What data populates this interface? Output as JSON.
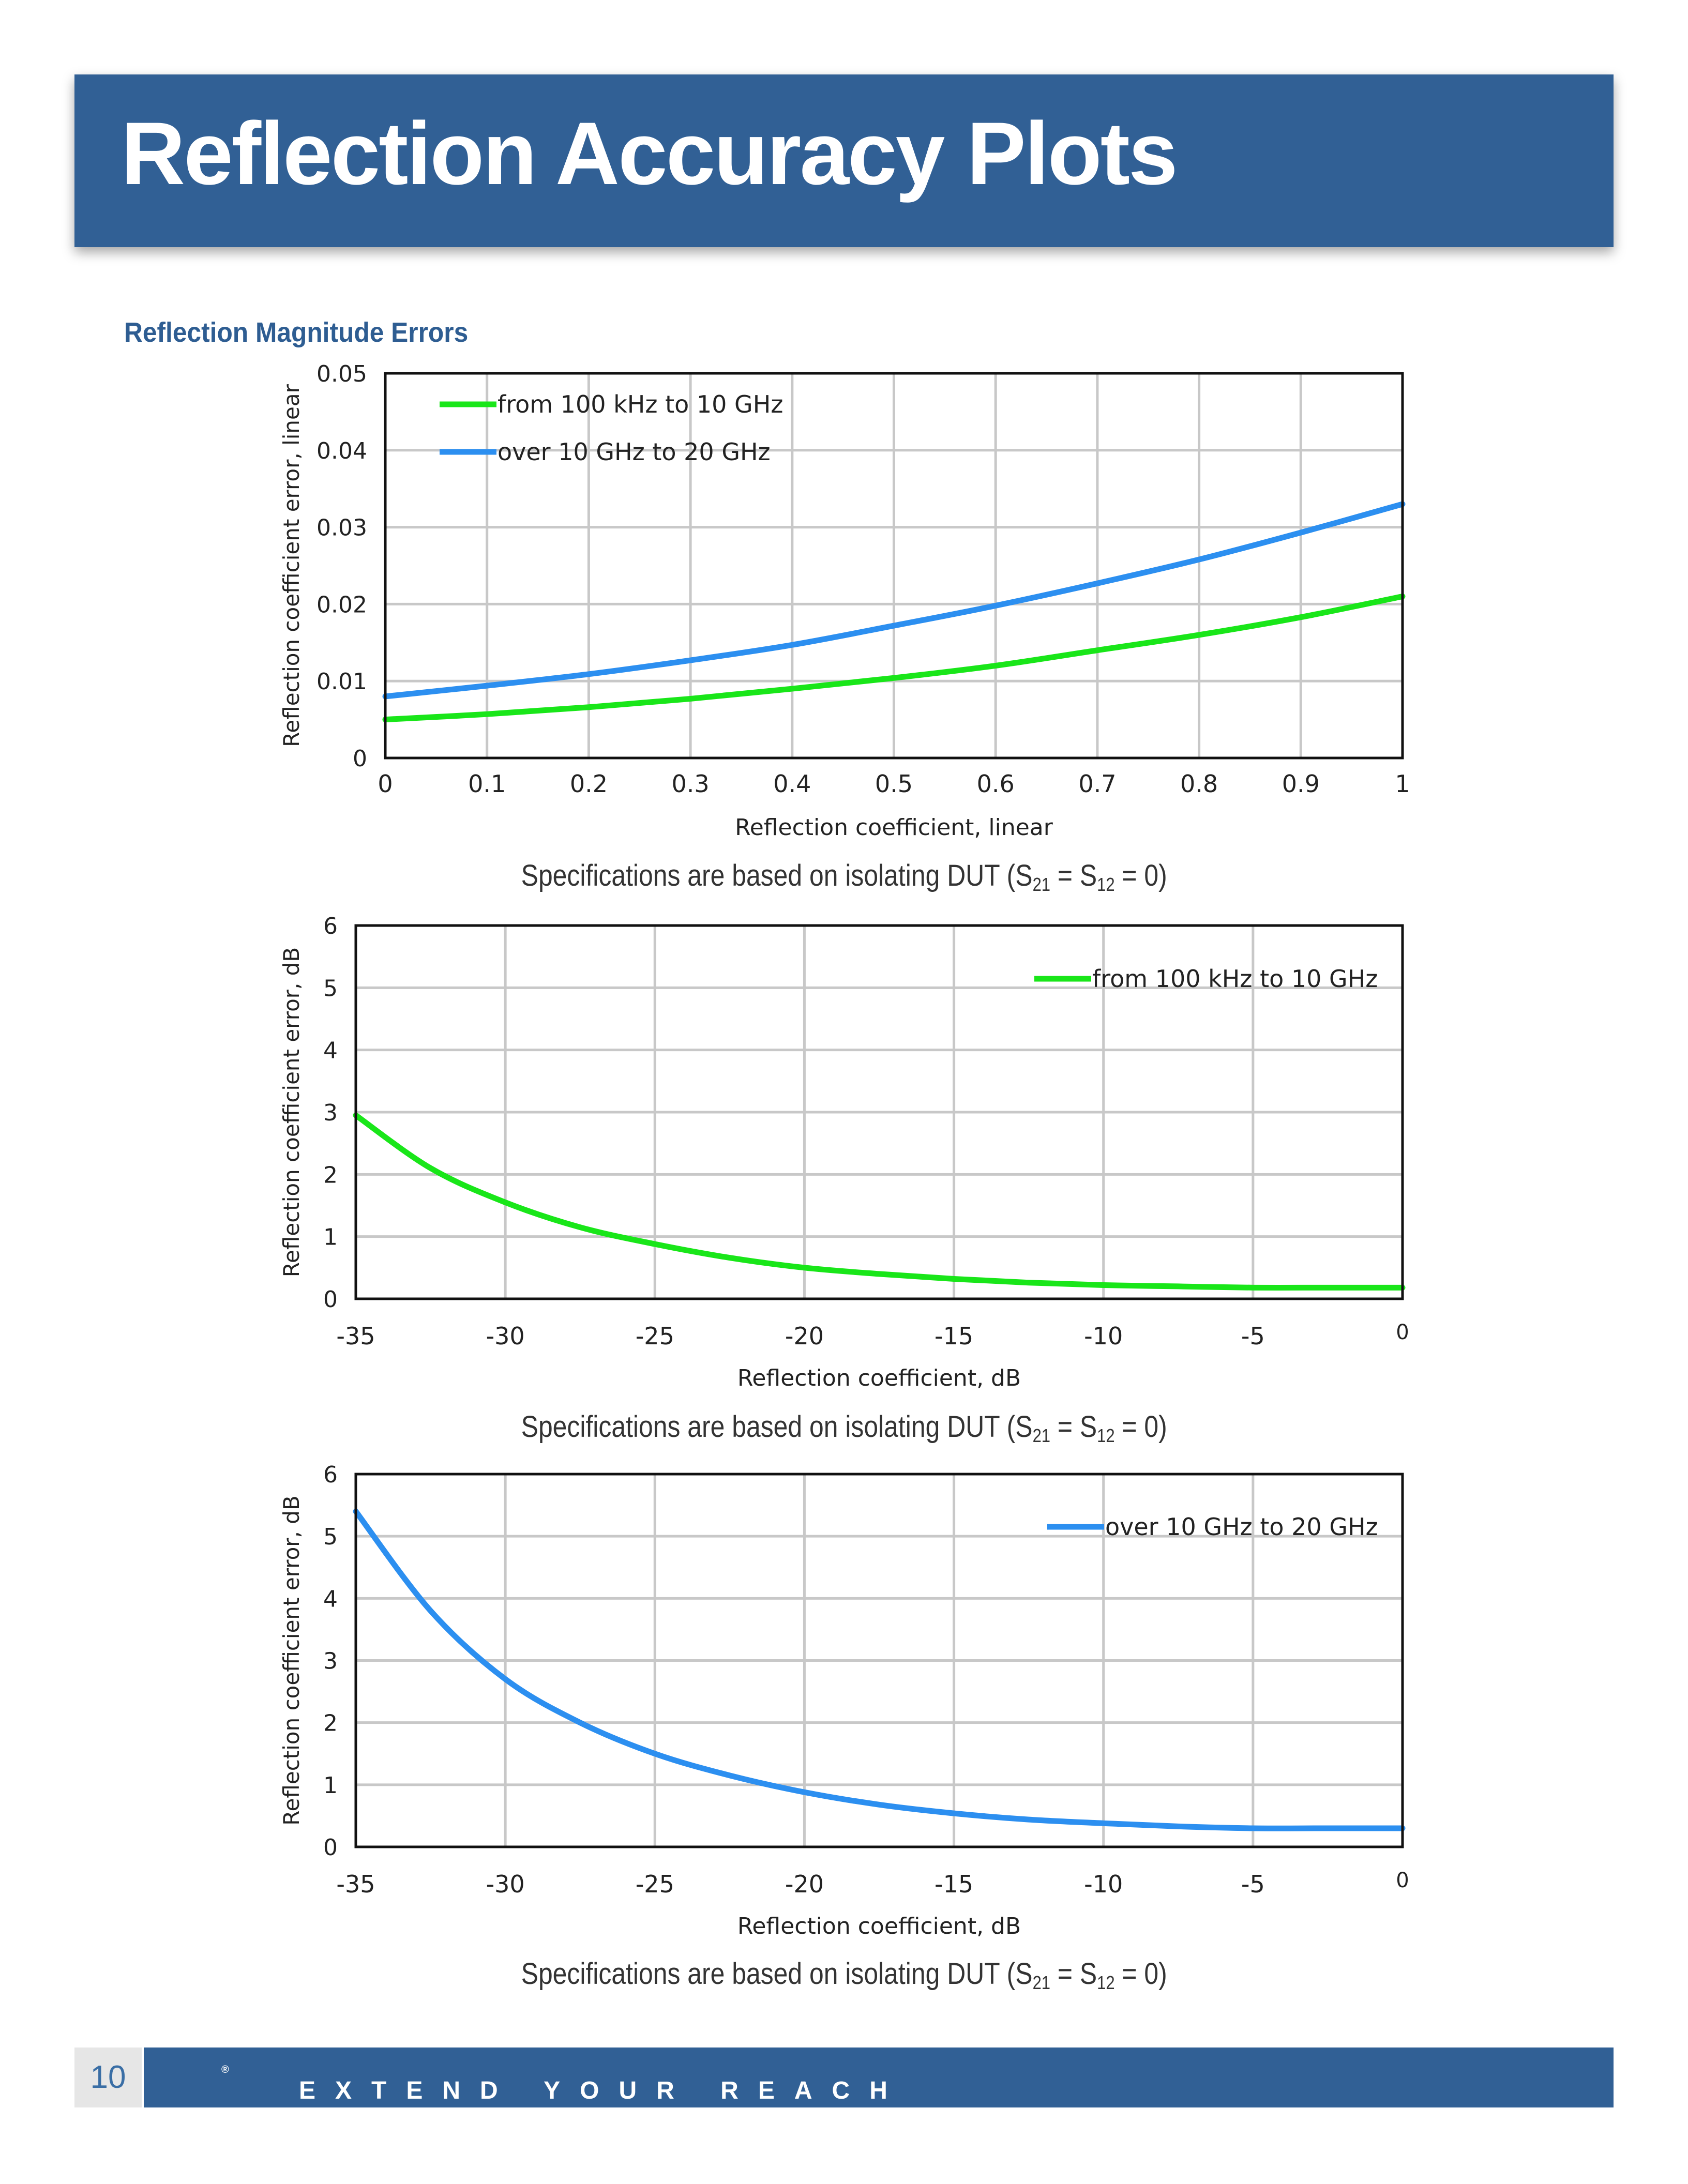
{
  "page": {
    "title": "Reflection Accuracy Plots",
    "section_title": "Reflection Magnitude Errors",
    "page_number": "10",
    "tagline": "EXTEND YOUR REACH",
    "tagline_mark": "®",
    "colors": {
      "brand": "#316095",
      "green_series": "#19e619",
      "blue_series": "#2c8ff0"
    }
  },
  "captions": [
    {
      "prefix": "Specifications are based on isolating DUT (S",
      "sub1": "21",
      "middle": " = S",
      "sub2": "12",
      "suffix": " = 0)"
    },
    {
      "prefix": "Specifications are based on isolating DUT (S",
      "sub1": "21",
      "middle": " = S",
      "sub2": "12",
      "suffix": " = 0)"
    },
    {
      "prefix": "Specifications are based on isolating DUT (S",
      "sub1": "21",
      "middle": " = S",
      "sub2": "12",
      "suffix": " = 0)"
    }
  ],
  "chart_data": [
    {
      "type": "line",
      "title": "",
      "xlabel": "Reflection coefficient, linear",
      "ylabel": "Reflection coefficient error, linear",
      "xlim": [
        0,
        1
      ],
      "ylim": [
        0,
        0.05
      ],
      "xticks": [
        0,
        0.1,
        0.2,
        0.3,
        0.4,
        0.5,
        0.6,
        0.7,
        0.8,
        0.9,
        1
      ],
      "xtick_labels": [
        "0",
        "0.1",
        "0.2",
        "0.3",
        "0.4",
        "0.5",
        "0.6",
        "0.7",
        "0.8",
        "0.9",
        "1"
      ],
      "yticks": [
        0,
        0.01,
        0.02,
        0.03,
        0.04,
        0.05
      ],
      "ytick_labels": [
        "0",
        "0.01",
        "0.02",
        "0.03",
        "0.04",
        "0.05"
      ],
      "grid": true,
      "legend": "top-left",
      "x": [
        0,
        0.1,
        0.2,
        0.3,
        0.4,
        0.5,
        0.6,
        0.7,
        0.8,
        0.9,
        1
      ],
      "series": [
        {
          "name": "from 100 kHz to 10 GHz",
          "color": "#19e619",
          "values": [
            0.005,
            0.0057,
            0.0066,
            0.0077,
            0.009,
            0.0104,
            0.012,
            0.014,
            0.016,
            0.0183,
            0.021
          ]
        },
        {
          "name": "over 10 GHz to 20 GHz",
          "color": "#2c8ff0",
          "values": [
            0.008,
            0.0094,
            0.0109,
            0.0127,
            0.0147,
            0.0172,
            0.0198,
            0.0227,
            0.0258,
            0.0293,
            0.033
          ]
        }
      ]
    },
    {
      "type": "line",
      "title": "",
      "xlabel": "Reflection coefficient, dB",
      "ylabel": "Reflection coefficient error, dB",
      "xlim": [
        -35,
        0
      ],
      "ylim": [
        0,
        6
      ],
      "xticks": [
        -35,
        -30,
        -25,
        -20,
        -15,
        -10,
        -5,
        0
      ],
      "xtick_labels": [
        "-35",
        "-30",
        "-25",
        "-20",
        "-15",
        "-10",
        "-5",
        "0"
      ],
      "yticks": [
        0,
        1,
        2,
        3,
        4,
        5,
        6
      ],
      "ytick_labels": [
        "0",
        "1",
        "2",
        "3",
        "4",
        "5",
        "6"
      ],
      "grid": true,
      "legend": "top-right",
      "x": [
        -35,
        -32.5,
        -30,
        -27.5,
        -25,
        -22.5,
        -20,
        -17.5,
        -15,
        -12.5,
        -10,
        -7.5,
        -5,
        -2.5,
        0
      ],
      "series": [
        {
          "name": "from 100 kHz to 10 GHz",
          "color": "#19e619",
          "values": [
            2.95,
            2.1,
            1.55,
            1.15,
            0.88,
            0.66,
            0.5,
            0.4,
            0.32,
            0.26,
            0.22,
            0.2,
            0.18,
            0.18,
            0.18
          ]
        }
      ]
    },
    {
      "type": "line",
      "title": "",
      "xlabel": "Reflection coefficient, dB",
      "ylabel": "Reflection coefficient error, dB",
      "xlim": [
        -35,
        0
      ],
      "ylim": [
        0,
        6
      ],
      "xticks": [
        -35,
        -30,
        -25,
        -20,
        -15,
        -10,
        -5,
        0
      ],
      "xtick_labels": [
        "-35",
        "-30",
        "-25",
        "-20",
        "-15",
        "-10",
        "-5",
        "0"
      ],
      "yticks": [
        0,
        1,
        2,
        3,
        4,
        5,
        6
      ],
      "ytick_labels": [
        "0",
        "1",
        "2",
        "3",
        "4",
        "5",
        "6"
      ],
      "grid": true,
      "legend": "top-right",
      "x": [
        -35,
        -32.5,
        -30,
        -27.5,
        -25,
        -22.5,
        -20,
        -17.5,
        -15,
        -12.5,
        -10,
        -7.5,
        -5,
        -2.5,
        0
      ],
      "series": [
        {
          "name": "over 10 GHz to 20 GHz",
          "color": "#2c8ff0",
          "values": [
            5.4,
            3.8,
            2.7,
            2.0,
            1.5,
            1.15,
            0.88,
            0.68,
            0.54,
            0.44,
            0.38,
            0.33,
            0.3,
            0.3,
            0.3
          ]
        }
      ]
    }
  ]
}
